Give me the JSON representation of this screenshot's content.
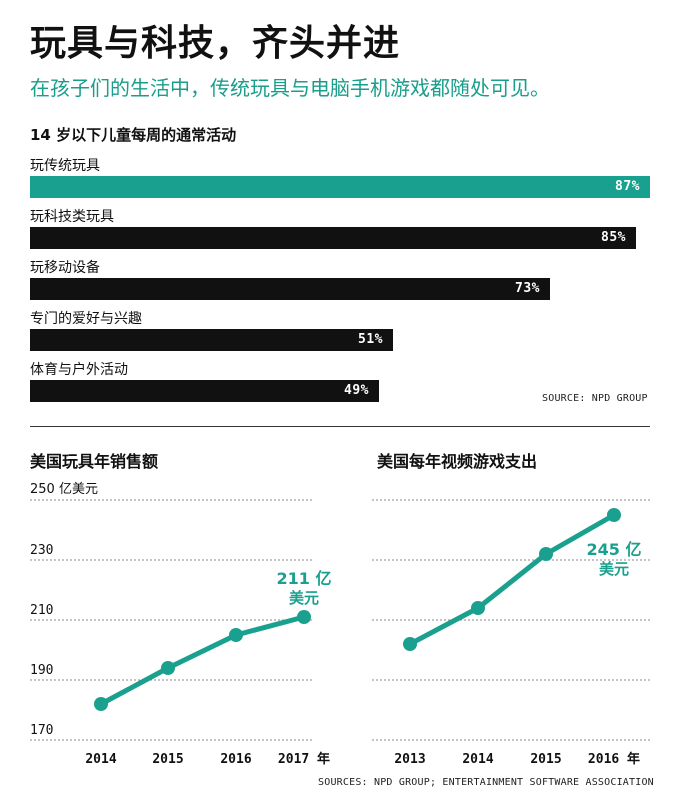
{
  "header": {
    "title": "玩具与科技，齐头并进",
    "subtitle": "在孩子们的生活中，传统玩具与电脑手机游戏都随处可见。"
  },
  "bar_section": {
    "heading": "14 岁以下儿童每周的通常活动",
    "source": "SOURCE: NPD GROUP"
  },
  "footer": {
    "sources": "SOURCES: NPD GROUP; ENTERTAINMENT SOFTWARE ASSOCIATION"
  },
  "colors": {
    "teal": "#1aa08e",
    "black": "#111111",
    "grid": "#999999"
  },
  "chart_data": [
    {
      "type": "bar",
      "orientation": "horizontal",
      "title": "14 岁以下儿童每周的通常活动",
      "categories": [
        "玩传统玩具",
        "玩科技类玩具",
        "玩移动设备",
        "专门的爱好与兴趣",
        "体育与户外活动"
      ],
      "values": [
        87,
        85,
        73,
        51,
        49
      ],
      "value_labels": [
        "87%",
        "85%",
        "73%",
        "51%",
        "49%"
      ],
      "highlight_index": 0,
      "xlim": [
        0,
        87
      ]
    },
    {
      "type": "line",
      "title": "美国玩具年销售额",
      "unit_label": "250 亿美元",
      "x": [
        "2014",
        "2015",
        "2016",
        "2017 年"
      ],
      "values": [
        182,
        194,
        205,
        211
      ],
      "ylim": [
        170,
        250
      ],
      "yticks": [
        170,
        190,
        210,
        230,
        250
      ],
      "ytick_labels": [
        "170",
        "190",
        "210",
        "230",
        ""
      ],
      "annotation": {
        "line1": "211 亿",
        "line2": "美元"
      },
      "grid": true
    },
    {
      "type": "line",
      "title": "美国每年视频游戏支出",
      "x": [
        "2013",
        "2014",
        "2015",
        "2016 年"
      ],
      "values": [
        202,
        214,
        232,
        245
      ],
      "ylim": [
        170,
        250
      ],
      "yticks": [
        170,
        190,
        210,
        230,
        250
      ],
      "annotation": {
        "line1": "245 亿",
        "line2": "美元"
      },
      "grid": true
    }
  ]
}
